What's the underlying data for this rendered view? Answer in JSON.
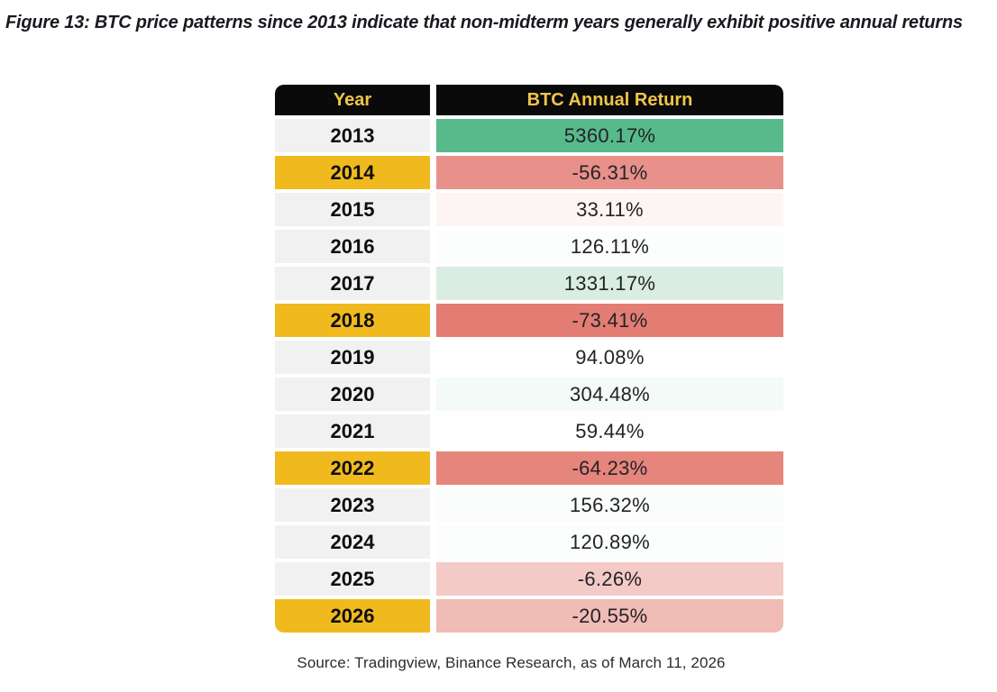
{
  "title": {
    "text": "Figure 13: BTC price patterns since 2013 indicate that non-midterm years generally exhibit positive annual returns"
  },
  "table": {
    "columns": [
      "Year",
      "BTC Annual Return"
    ],
    "colors": {
      "header_bg": "#0a0a0a",
      "header_text": "#f1c54a",
      "regular_year_bg": "#f2f1f1",
      "midterm_year_bg": "#f0ba1e"
    },
    "rows": [
      {
        "year": "2013",
        "return": "5360.17%",
        "midterm": false,
        "value_bg": "#57ba8b"
      },
      {
        "year": "2014",
        "return": "-56.31%",
        "midterm": true,
        "value_bg": "#e8908a"
      },
      {
        "year": "2015",
        "return": "33.11%",
        "midterm": false,
        "value_bg": "#fdf5f4"
      },
      {
        "year": "2016",
        "return": "126.11%",
        "midterm": false,
        "value_bg": "#fbfefc"
      },
      {
        "year": "2017",
        "return": "1331.17%",
        "midterm": false,
        "value_bg": "#d9ede3"
      },
      {
        "year": "2018",
        "return": "-73.41%",
        "midterm": true,
        "value_bg": "#e37d73"
      },
      {
        "year": "2019",
        "return": "94.08%",
        "midterm": false,
        "value_bg": "#ffffff"
      },
      {
        "year": "2020",
        "return": "304.48%",
        "midterm": false,
        "value_bg": "#f4faf7"
      },
      {
        "year": "2021",
        "return": "59.44%",
        "midterm": false,
        "value_bg": "#fdfefd"
      },
      {
        "year": "2022",
        "return": "-64.23%",
        "midterm": true,
        "value_bg": "#e5857c"
      },
      {
        "year": "2023",
        "return": "156.32%",
        "midterm": false,
        "value_bg": "#fafdfb"
      },
      {
        "year": "2024",
        "return": "120.89%",
        "midterm": false,
        "value_bg": "#fbfefd"
      },
      {
        "year": "2025",
        "return": "-6.26%",
        "midterm": false,
        "value_bg": "#f4cac7"
      },
      {
        "year": "2026",
        "return": "-20.55%",
        "midterm": true,
        "value_bg": "#f1bbb6"
      }
    ]
  },
  "source": {
    "text": "Source: Tradingview, Binance Research, as of March 11, 2026"
  },
  "chart_data": {
    "type": "table",
    "title": "Figure 13: BTC price patterns since 2013 indicate that non-midterm years generally exhibit positive annual returns",
    "columns": [
      "Year",
      "BTC Annual Return"
    ],
    "categories": [
      "2013",
      "2014",
      "2015",
      "2016",
      "2017",
      "2018",
      "2019",
      "2020",
      "2021",
      "2022",
      "2023",
      "2024",
      "2025",
      "2026"
    ],
    "values": [
      5360.17,
      -56.31,
      33.11,
      126.11,
      1331.17,
      -73.41,
      94.08,
      304.48,
      59.44,
      -64.23,
      156.32,
      120.89,
      -6.26,
      -20.55
    ],
    "units": "%",
    "midterm_years": [
      "2014",
      "2018",
      "2022",
      "2026"
    ],
    "notes": "Midterm years highlighted gold; cell shading encodes magnitude of positive (green) vs negative (red) returns",
    "source": "Source: Tradingview, Binance Research, as of March 11, 2026"
  }
}
